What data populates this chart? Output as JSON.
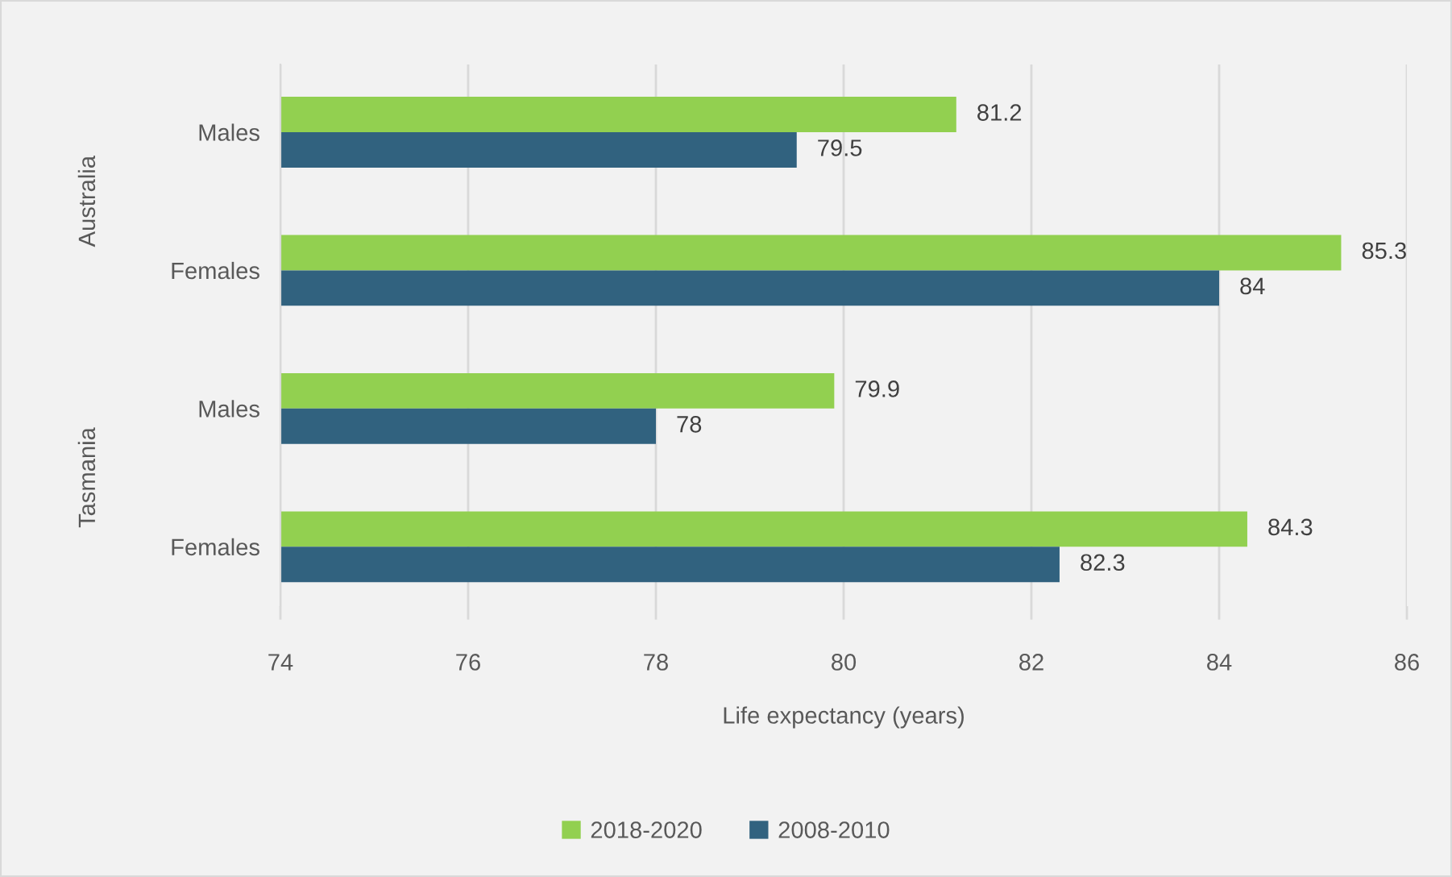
{
  "chart_data": {
    "type": "bar",
    "orientation": "horizontal",
    "categories": [
      "Males",
      "Females",
      "Males",
      "Females"
    ],
    "series": [
      {
        "name": "2018-2020",
        "color": "#92d050",
        "values": [
          81.2,
          85.3,
          79.9,
          84.3
        ]
      },
      {
        "name": "2008-2010",
        "color": "#31627f",
        "values": [
          79.5,
          84,
          78,
          82.3
        ]
      }
    ],
    "xlim": [
      74,
      86
    ],
    "xticks": [
      74,
      76,
      78,
      80,
      82,
      84,
      86
    ],
    "xlabel": "Life expectancy (years)",
    "grid": "x",
    "legend": "bottom",
    "data_labels": true,
    "annotations": [
      "Australia",
      "Tasmania"
    ]
  }
}
